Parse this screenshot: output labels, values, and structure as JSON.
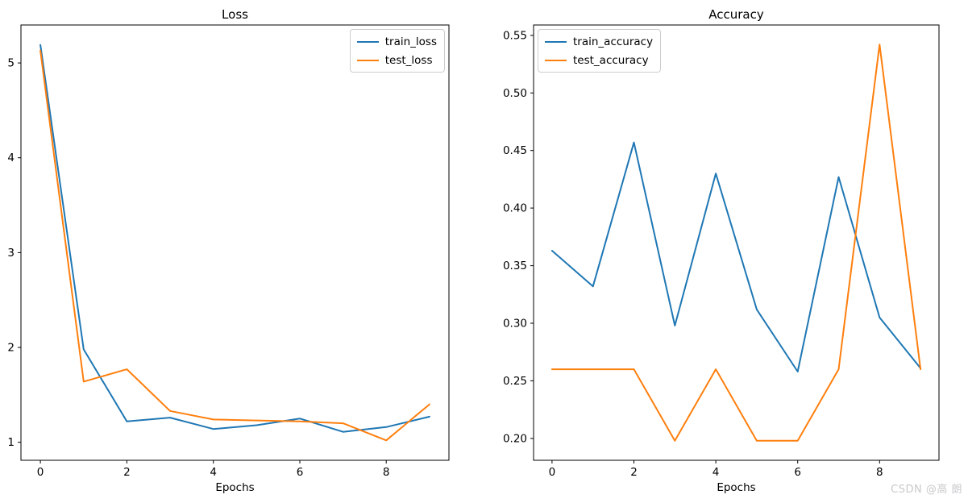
{
  "figure": {
    "background": "#ffffff",
    "watermark": "CSDN @高 朗",
    "watermark_color": "#c9c9cc"
  },
  "chart_data": [
    {
      "type": "line",
      "title": "Loss",
      "xlabel": "Epochs",
      "grid": false,
      "legend_position": "top-right",
      "legend": [
        "train_loss",
        "test_loss"
      ],
      "x": [
        0,
        1,
        2,
        3,
        4,
        5,
        6,
        7,
        8,
        9
      ],
      "series": [
        {
          "name": "train_loss",
          "color": "#1f77b4",
          "values": [
            5.19,
            1.98,
            1.22,
            1.26,
            1.14,
            1.18,
            1.25,
            1.11,
            1.16,
            1.27
          ]
        },
        {
          "name": "test_loss",
          "color": "#ff7f0e",
          "values": [
            5.13,
            1.64,
            1.77,
            1.33,
            1.24,
            1.23,
            1.22,
            1.2,
            1.02,
            1.4
          ]
        }
      ],
      "xlim": [
        -0.45,
        9.45
      ],
      "ylim": [
        0.81,
        5.4
      ],
      "xticks": [
        0,
        2,
        4,
        6,
        8
      ],
      "xtick_labels": [
        "0",
        "2",
        "4",
        "6",
        "8"
      ],
      "yticks": [
        1,
        2,
        3,
        4,
        5
      ],
      "ytick_labels": [
        "1",
        "2",
        "3",
        "4",
        "5"
      ]
    },
    {
      "type": "line",
      "title": "Accuracy",
      "xlabel": "Epochs",
      "grid": false,
      "legend_position": "top-left",
      "legend": [
        "train_accuracy",
        "test_accuracy"
      ],
      "x": [
        0,
        1,
        2,
        3,
        4,
        5,
        6,
        7,
        8,
        9
      ],
      "series": [
        {
          "name": "train_accuracy",
          "color": "#1f77b4",
          "values": [
            0.363,
            0.332,
            0.457,
            0.298,
            0.43,
            0.312,
            0.258,
            0.427,
            0.305,
            0.261
          ]
        },
        {
          "name": "test_accuracy",
          "color": "#ff7f0e",
          "values": [
            0.26,
            0.26,
            0.26,
            0.198,
            0.26,
            0.198,
            0.198,
            0.26,
            0.542,
            0.26
          ]
        }
      ],
      "xlim": [
        -0.45,
        9.45
      ],
      "ylim": [
        0.181,
        0.559
      ],
      "xticks": [
        0,
        2,
        4,
        6,
        8
      ],
      "xtick_labels": [
        "0",
        "2",
        "4",
        "6",
        "8"
      ],
      "yticks": [
        0.2,
        0.25,
        0.3,
        0.35,
        0.4,
        0.45,
        0.5,
        0.55
      ],
      "ytick_labels": [
        "0.20",
        "0.25",
        "0.30",
        "0.35",
        "0.40",
        "0.45",
        "0.50",
        "0.55"
      ]
    }
  ]
}
